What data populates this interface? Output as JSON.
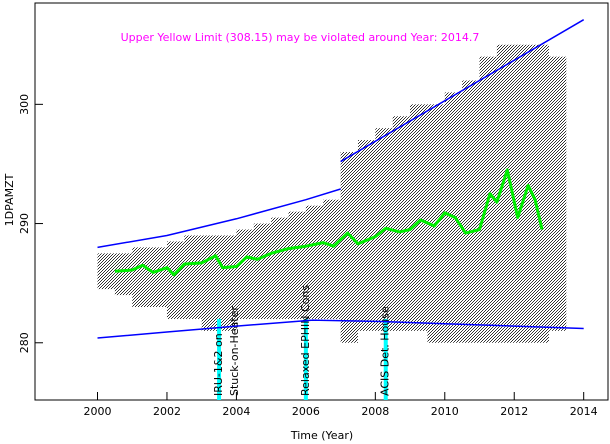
{
  "chart_data": {
    "type": "line",
    "title": "Upper Yellow  Limit (308.15) may be violated around Year: 2014.7",
    "title_color": "#ff00ff",
    "xlabel": "Time (Year)",
    "ylabel": "1DPAMZT",
    "xlim": [
      1998.2,
      2014.7
    ],
    "ylim": [
      275.2,
      308.5
    ],
    "xticks": [
      2000,
      2002,
      2004,
      2006,
      2008,
      2010,
      2012,
      2014
    ],
    "yticks": [
      280,
      290,
      300
    ],
    "cloud": {
      "color": "#000000",
      "x": [
        2000.25,
        2000.75,
        2001.25,
        2001.75,
        2002.25,
        2002.75,
        2003.25,
        2003.75,
        2004.25,
        2004.75,
        2005.25,
        2005.75,
        2006.25,
        2006.75,
        2007.25,
        2007.75,
        2008.25,
        2008.75,
        2009.25,
        2009.75,
        2010.25,
        2010.75,
        2011.25,
        2011.75,
        2012.25,
        2012.75,
        2013.25
      ],
      "low": [
        284.5,
        284,
        283,
        283,
        282,
        282,
        281,
        281,
        282,
        282,
        282,
        282,
        282,
        282,
        280,
        281,
        281,
        281,
        281,
        280,
        280,
        280,
        280,
        280,
        280,
        280,
        281
      ],
      "high": [
        287.5,
        287.5,
        288,
        288,
        288.5,
        289,
        289,
        289,
        289.5,
        290,
        290.5,
        291,
        291.5,
        292,
        296,
        297,
        298,
        299,
        300,
        300,
        301,
        302,
        304,
        305,
        305,
        305,
        304
      ]
    },
    "series": [
      {
        "color": "#0000ff",
        "x": [
          2000,
          2002,
          2004,
          2006,
          2007
        ],
        "values": [
          288.0,
          289.0,
          290.4,
          292.0,
          292.9
        ]
      },
      {
        "color": "#0000ff",
        "x": [
          2007,
          2014
        ],
        "values": [
          295.2,
          307.1
        ]
      },
      {
        "color": "#0000ff",
        "x": [
          2000,
          2002,
          2004,
          2006.2,
          2008,
          2010,
          2012,
          2014
        ],
        "values": [
          280.4,
          280.9,
          281.4,
          281.9,
          281.8,
          281.6,
          281.4,
          281.2
        ]
      },
      {
        "color": "#00ee00",
        "x": [
          2000.5,
          2001,
          2001.3,
          2001.6,
          2002,
          2002.2,
          2002.5,
          2003,
          2003.4,
          2003.6,
          2004,
          2004.3,
          2004.6,
          2005,
          2005.5,
          2006,
          2006.5,
          2006.8,
          2007.2,
          2007.5,
          2008,
          2008.3,
          2008.7,
          2009,
          2009.3,
          2009.7,
          2010,
          2010.3,
          2010.6,
          2011,
          2011.3,
          2011.5,
          2011.8,
          2012.1,
          2012.4,
          2012.6,
          2012.8
        ],
        "values": [
          286.0,
          286.1,
          286.5,
          285.9,
          286.3,
          285.7,
          286.6,
          286.7,
          287.3,
          286.3,
          286.4,
          287.2,
          287.0,
          287.5,
          287.9,
          288.1,
          288.4,
          288.1,
          289.2,
          288.3,
          288.9,
          289.6,
          289.3,
          289.5,
          290.3,
          289.8,
          290.9,
          290.5,
          289.2,
          289.5,
          292.5,
          291.8,
          294.5,
          290.5,
          293.2,
          292.0,
          289.5
        ]
      }
    ],
    "events": [
      {
        "x": 2003.5,
        "top": 282,
        "color": "#00ffff",
        "labels": [
          "IRU-1&2 on",
          "Stuck-on-Heater"
        ]
      },
      {
        "x": 2006.0,
        "top": 282,
        "color": "#00ffff",
        "labels": [
          "Relaxed EPHIN Cons"
        ]
      },
      {
        "x": 2008.3,
        "top": 282,
        "color": "#00ffff",
        "labels": [
          "ACIS Det. House"
        ]
      }
    ]
  }
}
